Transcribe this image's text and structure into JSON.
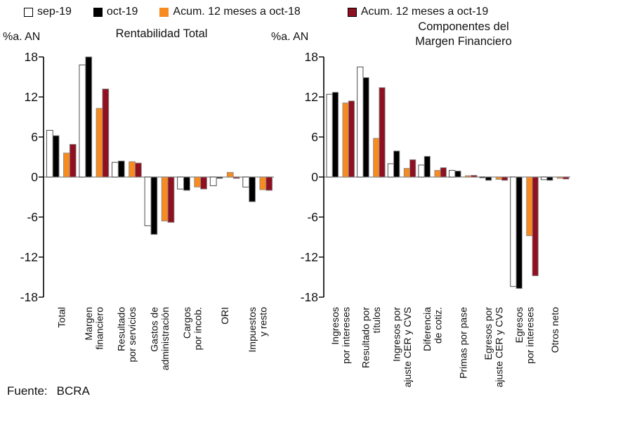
{
  "legend": {
    "items": [
      {
        "label": "sep-19",
        "color": "#FFFFFF",
        "border": "#000000"
      },
      {
        "label": "oct-19",
        "color": "#000000",
        "border": "#000000"
      },
      {
        "label": "Acum. 12 meses a oct-18",
        "color": "#F78B1F",
        "border": "#F78B1F"
      },
      {
        "label": "Acum. 12 meses a oct-19",
        "color": "#8E1021",
        "border": "#000000"
      }
    ]
  },
  "footer": {
    "label": "Fuente:",
    "value": "BCRA"
  },
  "chart_data": [
    {
      "type": "bar",
      "title": "Rentabilidad Total",
      "axis_label": "%a. AN",
      "ylim": [
        -18,
        18
      ],
      "ytick_step": 6,
      "grid": false,
      "legend_position": "top",
      "categories": [
        "Total",
        "Margen\nfinanciero",
        "Resultado\npor servicios",
        "Gastos de\nadministración",
        "Cargos\npor incob.",
        "ORI",
        "Impuestos\ny resto"
      ],
      "series": [
        {
          "name": "sep-19",
          "color": "#FFFFFF",
          "border": "#3a3a3a",
          "values": [
            7.0,
            16.8,
            2.2,
            -7.3,
            -1.8,
            -1.3,
            -1.5
          ]
        },
        {
          "name": "oct-19",
          "color": "#000000",
          "values": [
            6.2,
            18.0,
            2.4,
            -8.6,
            -2.0,
            -0.2,
            -3.7
          ]
        },
        {
          "name": "Acum. 12 meses a oct-18",
          "color": "#F78B1F",
          "values": [
            3.6,
            10.3,
            2.3,
            -6.6,
            -1.5,
            0.7,
            -1.9
          ]
        },
        {
          "name": "Acum. 12 meses a oct-19",
          "color": "#8E1021",
          "values": [
            4.9,
            13.2,
            2.1,
            -6.8,
            -1.8,
            -0.2,
            -2.0
          ]
        }
      ]
    },
    {
      "type": "bar",
      "title": "Componentes del\nMargen Financiero",
      "axis_label": "%a. AN",
      "ylim": [
        -18,
        18
      ],
      "ytick_step": 6,
      "grid": false,
      "legend_position": "top",
      "categories": [
        "Ingresos\npor intereses",
        "Resultado por\ntítulos",
        "Ingresos por\najuste CER y CVS",
        "Diferencia\nde cotiz.",
        "Primas por pase",
        "Egresos por\najuste CER y CVS",
        "Egresos\npor intereses",
        "Otros neto"
      ],
      "series": [
        {
          "name": "sep-19",
          "color": "#FFFFFF",
          "border": "#3a3a3a",
          "values": [
            12.4,
            16.5,
            2.0,
            1.8,
            1.0,
            -0.1,
            -16.4,
            -0.4
          ]
        },
        {
          "name": "oct-19",
          "color": "#000000",
          "values": [
            12.7,
            14.9,
            3.9,
            3.1,
            0.9,
            -0.5,
            -16.7,
            -0.5
          ]
        },
        {
          "name": "Acum. 12 meses a oct-18",
          "color": "#F78B1F",
          "values": [
            11.1,
            5.8,
            1.3,
            1.0,
            0.2,
            -0.35,
            -8.8,
            -0.2
          ]
        },
        {
          "name": "Acum. 12 meses a oct-19",
          "color": "#8E1021",
          "values": [
            11.4,
            13.4,
            2.6,
            1.4,
            0.25,
            -0.5,
            -14.8,
            -0.3
          ]
        }
      ]
    }
  ]
}
